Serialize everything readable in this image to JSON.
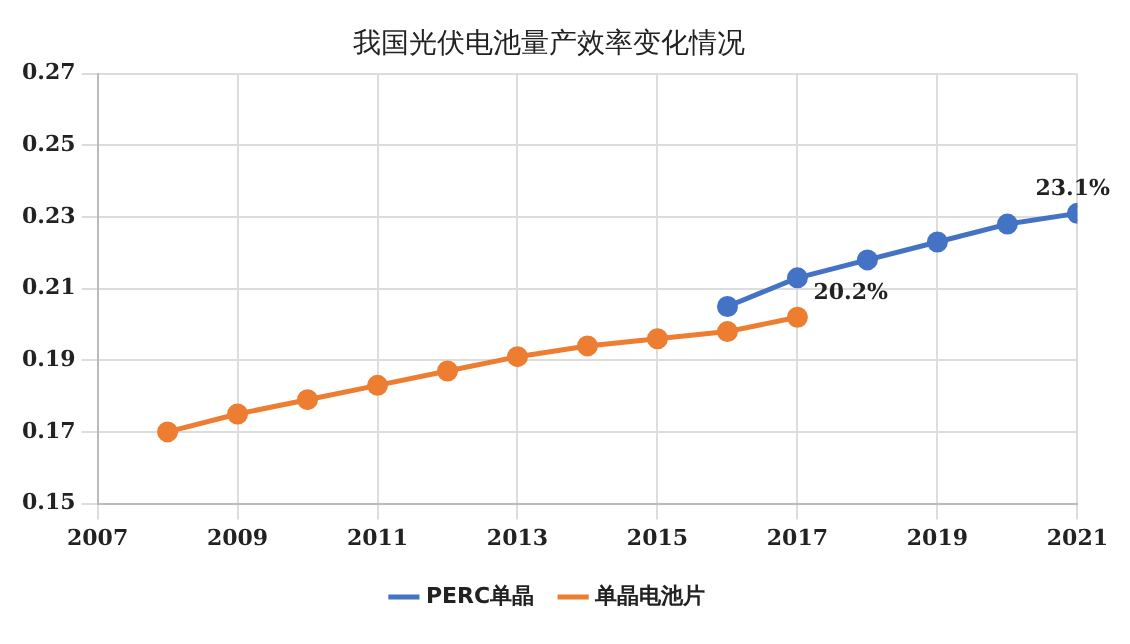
{
  "chart_data": {
    "type": "line",
    "title": "我国光伏电池量产效率变化情况",
    "series": [
      {
        "name": "PERC单晶",
        "color": "#4472c4",
        "x": [
          2016,
          2017,
          2018,
          2019,
          2020,
          2021
        ],
        "values": [
          0.205,
          0.213,
          0.218,
          0.223,
          0.228,
          0.231
        ]
      },
      {
        "name": "单晶电池片",
        "color": "#ed7d31",
        "x": [
          2008,
          2009,
          2010,
          2011,
          2012,
          2013,
          2014,
          2015,
          2016,
          2017
        ],
        "values": [
          0.17,
          0.175,
          0.179,
          0.183,
          0.187,
          0.191,
          0.194,
          0.196,
          0.198,
          0.202
        ]
      }
    ],
    "xlim": [
      2007,
      2021
    ],
    "xticks": [
      2007,
      2009,
      2011,
      2013,
      2015,
      2017,
      2019,
      2021
    ],
    "ylim": [
      0.15,
      0.27
    ],
    "yticks": [
      0.15,
      0.17,
      0.19,
      0.21,
      0.23,
      0.25,
      0.27
    ],
    "annotations": [
      {
        "text": "23.1%",
        "x": 2021,
        "y": 0.231
      },
      {
        "text": "20.2%",
        "x": 2017,
        "y": 0.202
      }
    ],
    "grid": true,
    "legend": "bottom",
    "marker": "circle",
    "line_style": "solid"
  }
}
